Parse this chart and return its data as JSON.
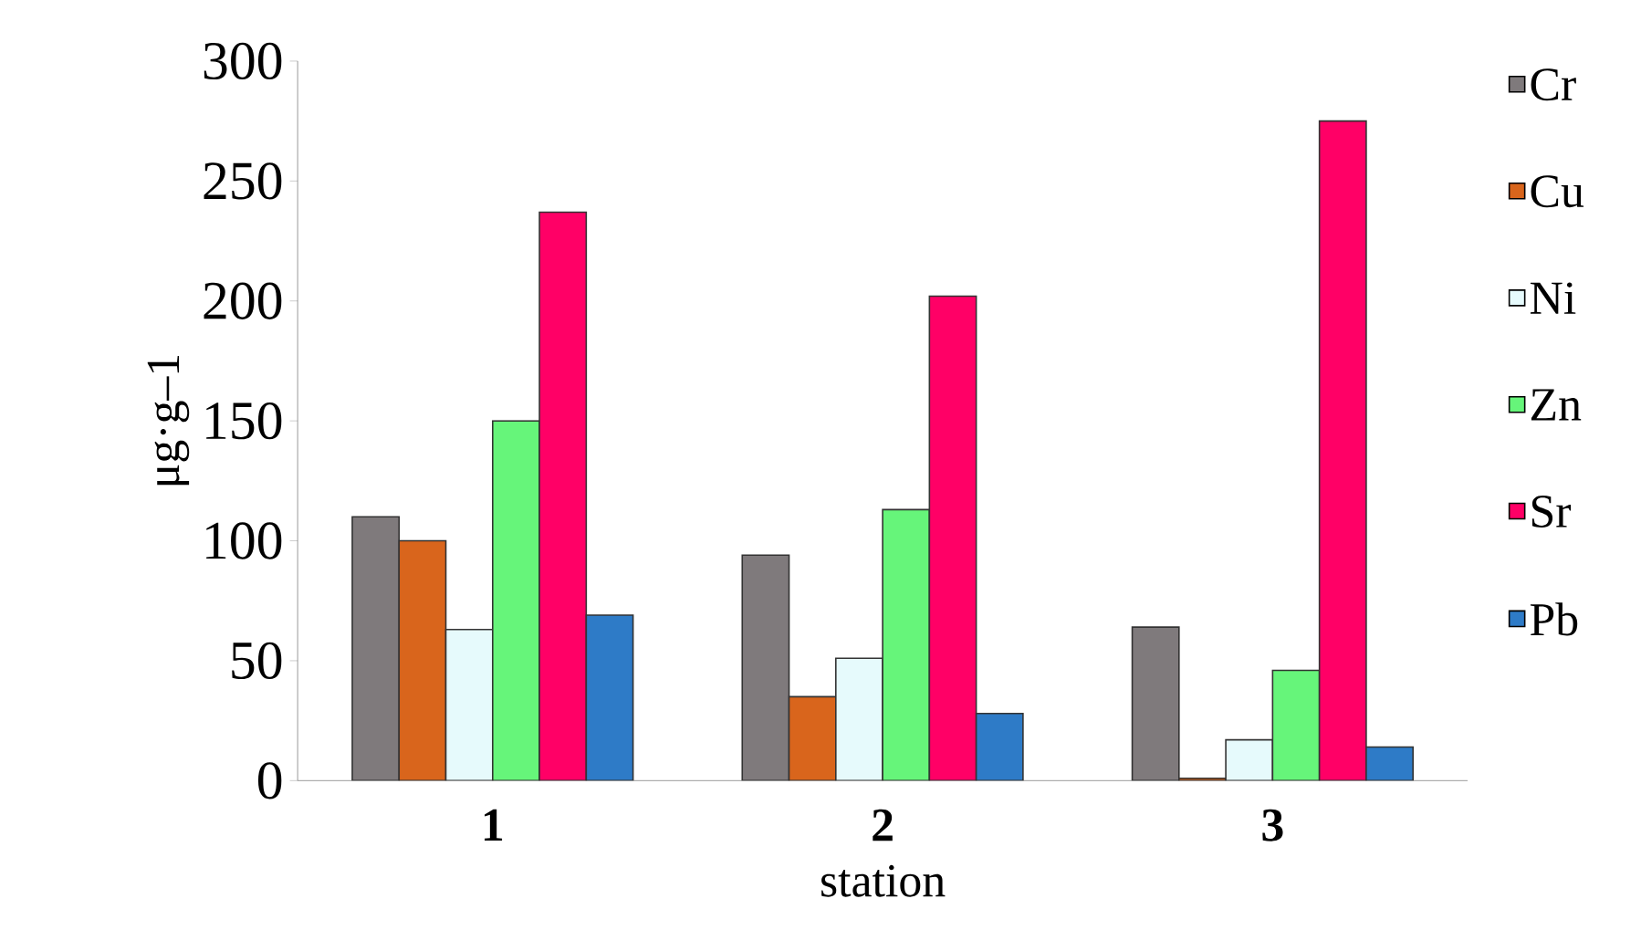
{
  "chart_data": {
    "type": "bar",
    "xlabel": "station",
    "ylabel": "μg·g–1",
    "categories": [
      "1",
      "2",
      "3"
    ],
    "series": [
      {
        "name": "Cr",
        "color": "#7f7a7c",
        "values": [
          110,
          94,
          64
        ]
      },
      {
        "name": "Cu",
        "color": "#d9651c",
        "values": [
          100,
          35,
          1
        ]
      },
      {
        "name": "Ni",
        "color": "#e6fafc",
        "values": [
          63,
          51,
          17
        ]
      },
      {
        "name": "Zn",
        "color": "#66f57a",
        "values": [
          150,
          113,
          46
        ]
      },
      {
        "name": "Sr",
        "color": "#ff0066",
        "values": [
          237,
          202,
          275
        ]
      },
      {
        "name": "Pb",
        "color": "#2e7bc7",
        "values": [
          69,
          28,
          14
        ]
      }
    ],
    "ylim": [
      0,
      300
    ],
    "yticks": [
      0,
      50,
      100,
      150,
      200,
      250,
      300
    ],
    "grid": false,
    "legend": "right"
  }
}
